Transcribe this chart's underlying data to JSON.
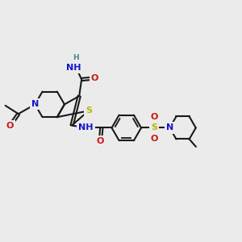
{
  "bg_color": "#ebebeb",
  "bond_color": "#1a1a1a",
  "bond_lw": 1.5,
  "dbl_sep": 0.055,
  "colors": {
    "N": "#1515cc",
    "O": "#cc1515",
    "S": "#b8b800",
    "H": "#4a8888",
    "C": "#1a1a1a"
  },
  "fs": 8.0,
  "fs_small": 6.5,
  "figsize": [
    3.0,
    3.0
  ],
  "dpi": 100,
  "xlim": [
    0.5,
    10.5
  ],
  "ylim": [
    0.5,
    10.5
  ]
}
